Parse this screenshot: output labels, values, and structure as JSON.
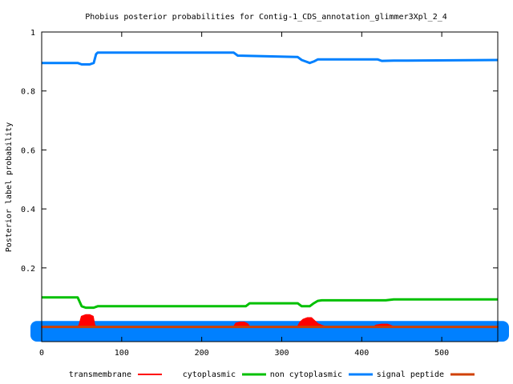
{
  "chart_data": {
    "type": "line",
    "title": "Phobius posterior probabilities for Contig-1_CDS_annotation_glimmer3Xpl_2_4",
    "xlabel": "",
    "ylabel": "Posterior label probability",
    "xlim": [
      0,
      570
    ],
    "ylim": [
      -0.05,
      1
    ],
    "xticks": [
      {
        "value": 0,
        "label": "0"
      },
      {
        "value": 100,
        "label": "100"
      },
      {
        "value": 200,
        "label": "200"
      },
      {
        "value": 300,
        "label": "300"
      },
      {
        "value": 400,
        "label": "400"
      },
      {
        "value": 500,
        "label": "500"
      }
    ],
    "yticks": [
      {
        "value": 0.2,
        "label": "0.2"
      },
      {
        "value": 0.4,
        "label": "0.4"
      },
      {
        "value": 0.6,
        "label": "0.6"
      },
      {
        "value": 0.8,
        "label": "0.8"
      },
      {
        "value": 1,
        "label": "1"
      }
    ],
    "legend_position": "bottom",
    "grid": false,
    "series": [
      {
        "name": "transmembrane",
        "color": "#ff0000",
        "kind": "filled",
        "x": [
          0,
          45,
          47,
          50,
          55,
          60,
          64,
          66,
          68,
          240,
          243,
          248,
          253,
          257,
          260,
          320,
          323,
          327,
          332,
          337,
          341,
          345,
          350,
          355,
          415,
          418,
          425,
          432,
          436,
          440,
          570
        ],
        "y": [
          0,
          0,
          0.005,
          0.035,
          0.04,
          0.04,
          0.035,
          0.005,
          0,
          0,
          0.012,
          0.015,
          0.015,
          0.01,
          0,
          0,
          0.015,
          0.025,
          0.03,
          0.03,
          0.02,
          0.01,
          0.004,
          0,
          0,
          0.005,
          0.008,
          0.008,
          0.004,
          0,
          0
        ]
      },
      {
        "name": "cytoplasmic",
        "color": "#00c000",
        "kind": "line",
        "x": [
          0,
          45,
          50,
          55,
          65,
          70,
          255,
          260,
          320,
          325,
          335,
          340,
          345,
          350,
          430,
          440,
          570
        ],
        "y": [
          0.1,
          0.1,
          0.07,
          0.065,
          0.065,
          0.07,
          0.07,
          0.08,
          0.08,
          0.07,
          0.07,
          0.08,
          0.088,
          0.09,
          0.09,
          0.093,
          0.093
        ]
      },
      {
        "name": "non cytoplasmic",
        "color": "#0080ff",
        "kind": "line",
        "x": [
          0,
          45,
          50,
          60,
          65,
          68,
          70,
          240,
          245,
          320,
          325,
          335,
          340,
          345,
          420,
          425,
          440,
          570
        ],
        "y": [
          0.895,
          0.895,
          0.89,
          0.89,
          0.895,
          0.925,
          0.93,
          0.93,
          0.92,
          0.915,
          0.905,
          0.895,
          0.9,
          0.907,
          0.907,
          0.902,
          0.903,
          0.905
        ]
      },
      {
        "name": "signal peptide",
        "color": "#d04000",
        "kind": "line",
        "x": [
          0,
          570
        ],
        "y": [
          0,
          0
        ]
      }
    ],
    "band": {
      "color": "#0080ff",
      "y_from": -0.05,
      "y_to": 0.02
    }
  }
}
